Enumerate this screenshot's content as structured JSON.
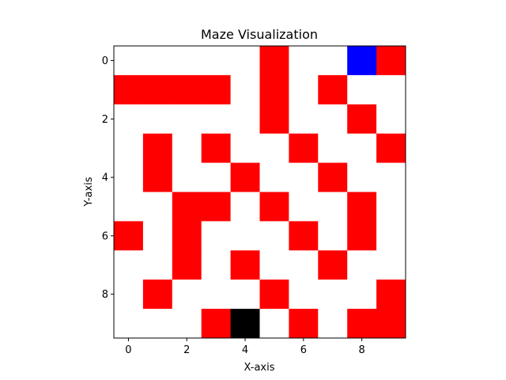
{
  "chart_data": {
    "type": "heatmap",
    "title": "Maze Visualization",
    "xlabel": "X-axis",
    "ylabel": "Y-axis",
    "xlim": [
      -0.5,
      9.5
    ],
    "ylim": [
      9.5,
      -0.5
    ],
    "x_ticks": [
      0,
      2,
      4,
      6,
      8
    ],
    "y_ticks": [
      0,
      2,
      4,
      6,
      8
    ],
    "grid": false,
    "legend": "none",
    "color_map": {
      "0": "#ffffff",
      "1": "#ff0000",
      "2": "#0000ff",
      "3": "#000000"
    },
    "cell_meaning": {
      "0": "open",
      "1": "wall",
      "2": "blue cell",
      "3": "black cell"
    },
    "grid_values": [
      [
        0,
        0,
        0,
        0,
        0,
        1,
        0,
        0,
        2,
        1
      ],
      [
        1,
        1,
        1,
        1,
        0,
        1,
        0,
        1,
        0,
        0
      ],
      [
        0,
        0,
        0,
        0,
        0,
        1,
        0,
        0,
        1,
        0
      ],
      [
        0,
        1,
        0,
        1,
        0,
        0,
        1,
        0,
        0,
        1
      ],
      [
        0,
        1,
        0,
        0,
        1,
        0,
        0,
        1,
        0,
        0
      ],
      [
        0,
        0,
        1,
        1,
        0,
        1,
        0,
        0,
        1,
        0
      ],
      [
        1,
        0,
        1,
        0,
        0,
        0,
        1,
        0,
        1,
        0
      ],
      [
        0,
        0,
        1,
        0,
        1,
        0,
        0,
        1,
        0,
        0
      ],
      [
        0,
        1,
        0,
        0,
        0,
        1,
        0,
        0,
        0,
        1
      ],
      [
        0,
        0,
        0,
        1,
        3,
        0,
        1,
        0,
        1,
        1
      ]
    ]
  }
}
